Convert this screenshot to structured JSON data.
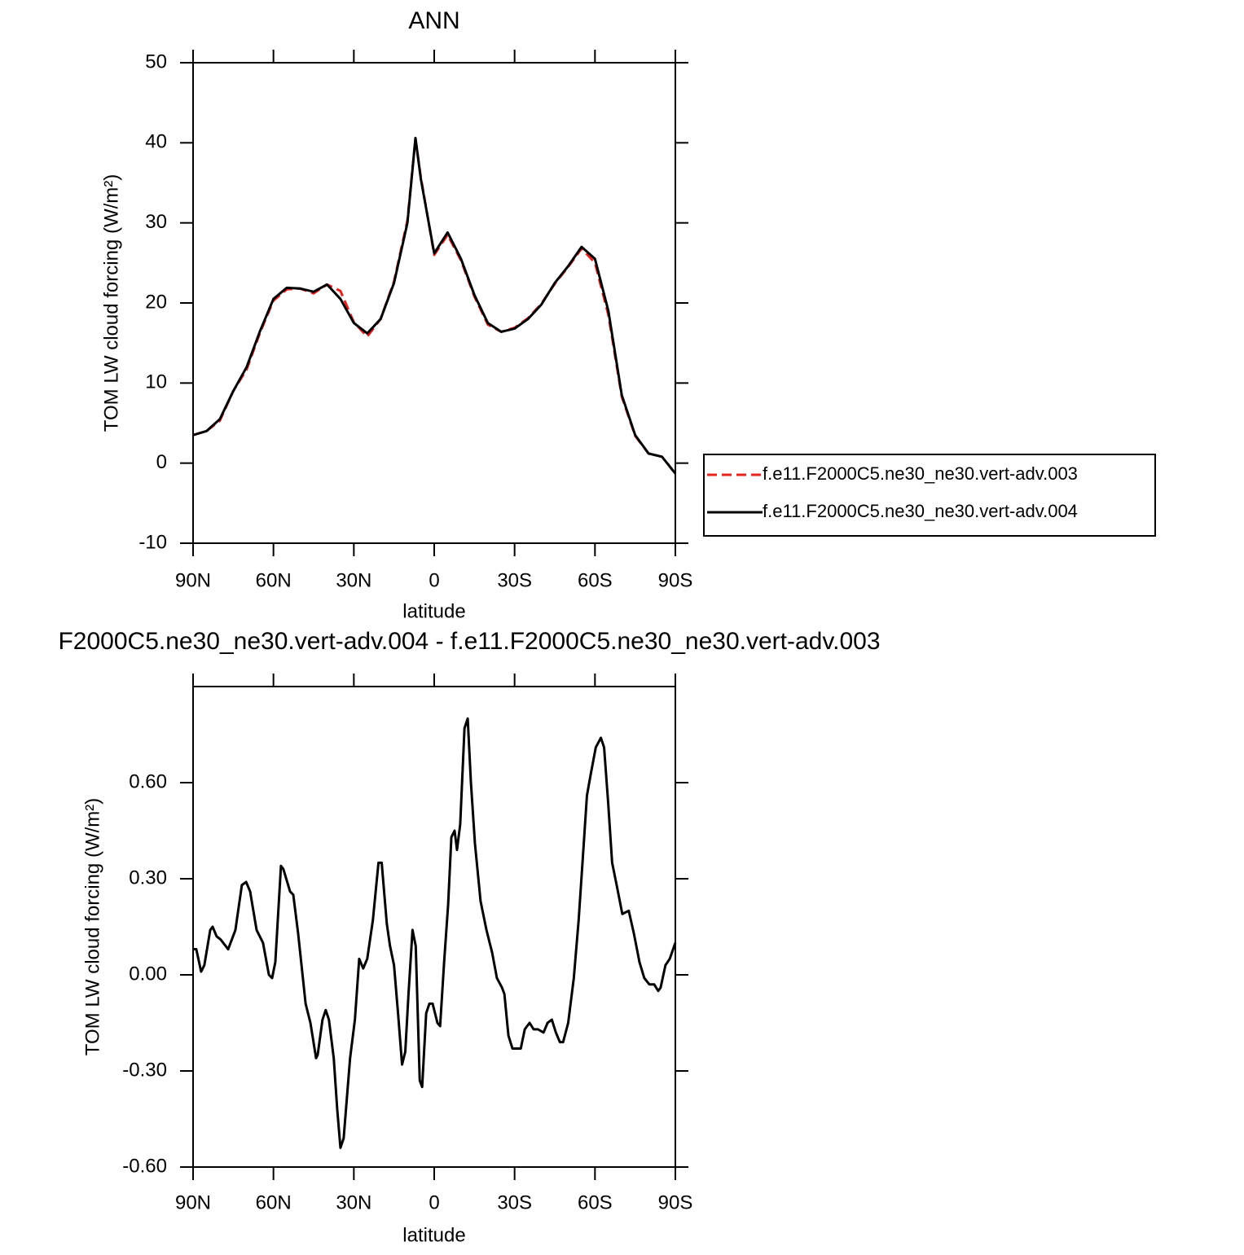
{
  "chart_data": [
    {
      "type": "line",
      "title": "ANN",
      "xlabel": "latitude",
      "ylabel": "TOM LW cloud forcing (W/m²)",
      "x": [
        90,
        85,
        80,
        75,
        70,
        65,
        60,
        55,
        50,
        45,
        40,
        35,
        30,
        25,
        20,
        15,
        10,
        7,
        5,
        0,
        -5,
        -10,
        -15,
        -20,
        -25,
        -30,
        -35,
        -40,
        -45,
        -50,
        -55,
        -60,
        -65,
        -70,
        -75,
        -80,
        -85,
        -90
      ],
      "series": [
        {
          "name": "f.e11.F2000C5.ne30_ne30.vert-adv.003",
          "color": "#e8231f",
          "style": "dashed",
          "values": [
            3.5,
            4.0,
            5.3,
            9.0,
            11.7,
            16.3,
            20.3,
            21.7,
            21.8,
            21.2,
            22.3,
            21.5,
            17.6,
            15.8,
            18.0,
            22.7,
            30.3,
            40.5,
            35.7,
            26.0,
            28.5,
            25.3,
            20.8,
            17.3,
            16.4,
            16.9,
            18.1,
            19.9,
            22.4,
            24.5,
            26.8,
            25.0,
            18.5,
            8.3,
            3.4,
            1.2,
            0.8,
            -1.3
          ]
        },
        {
          "name": "f.e11.F2000C5.ne30_ne30.vert-adv.004",
          "color": "#000000",
          "style": "solid",
          "values": [
            3.5,
            4.0,
            5.5,
            9.0,
            12.0,
            16.5,
            20.5,
            21.9,
            21.8,
            21.4,
            22.3,
            20.5,
            17.5,
            16.2,
            18.0,
            22.5,
            30.0,
            40.6,
            35.5,
            26.2,
            28.8,
            25.5,
            21.0,
            17.5,
            16.4,
            16.8,
            18.0,
            19.8,
            22.5,
            24.6,
            27.0,
            25.5,
            19.0,
            8.5,
            3.5,
            1.2,
            0.8,
            -1.3
          ]
        }
      ],
      "xlim": [
        90,
        -90
      ],
      "ylim": [
        -10,
        50
      ],
      "xticks": [
        {
          "value": 90,
          "label": "90N"
        },
        {
          "value": 60,
          "label": "60N"
        },
        {
          "value": 30,
          "label": "30N"
        },
        0,
        {
          "value": -30,
          "label": "30S"
        },
        {
          "value": -60,
          "label": "60S"
        },
        {
          "value": -90,
          "label": "90S"
        }
      ],
      "yticks": [
        -10,
        0,
        10,
        20,
        30,
        40,
        50
      ],
      "legend": "right"
    },
    {
      "type": "line",
      "title": "F2000C5.ne30_ne30.vert-adv.004 - f.e11.F2000C5.ne30_ne30.vert-adv.003",
      "xlabel": "latitude",
      "ylabel": "TOM LW cloud forcing (W/m²)",
      "x": [
        90,
        88.8,
        87.0,
        85.8,
        83.6,
        82.7,
        81.2,
        79.7,
        76.9,
        74.2,
        71.8,
        70.2,
        68.7,
        66.3,
        63.9,
        61.7,
        60.5,
        59.3,
        57.2,
        56.3,
        53.8,
        52.6,
        50.8,
        48.0,
        46.2,
        44.1,
        43.5,
        41.7,
        40.5,
        39.3,
        37.5,
        36.2,
        35.0,
        33.8,
        31.4,
        29.6,
        28.0,
        26.5,
        25.0,
        22.9,
        20.8,
        19.6,
        17.7,
        16.5,
        15.0,
        13.5,
        12.0,
        10.8,
        9.6,
        8.1,
        6.9,
        5.4,
        4.5,
        3.0,
        1.8,
        0.6,
        -1.2,
        -2.2,
        -3.7,
        -5.2,
        -6.4,
        -7.6,
        -8.5,
        -9.7,
        -11.3,
        -12.5,
        -13.7,
        -15.2,
        -17.3,
        -19.5,
        -21.6,
        -23.4,
        -25.3,
        -26.2,
        -27.7,
        -29.2,
        -30.7,
        -32.3,
        -33.8,
        -35.6,
        -37.1,
        -38.7,
        -40.8,
        -42.3,
        -43.9,
        -45.4,
        -46.9,
        -48.1,
        -50.0,
        -52.1,
        -53.9,
        -55.5,
        -57.0,
        -58.5,
        -60.3,
        -62.2,
        -63.4,
        -64.9,
        -66.4,
        -68.1,
        -70.2,
        -72.6,
        -74.5,
        -76.6,
        -78.4,
        -80.3,
        -82.1,
        -83.6,
        -84.5,
        -86.3,
        -87.9,
        -90
      ],
      "values": [
        0.08,
        0.08,
        0.01,
        0.03,
        0.14,
        0.15,
        0.12,
        0.11,
        0.08,
        0.14,
        0.28,
        0.29,
        0.26,
        0.14,
        0.1,
        0.0,
        -0.01,
        0.04,
        0.34,
        0.33,
        0.26,
        0.25,
        0.13,
        -0.09,
        -0.15,
        -0.26,
        -0.25,
        -0.14,
        -0.11,
        -0.14,
        -0.26,
        -0.42,
        -0.54,
        -0.51,
        -0.26,
        -0.14,
        0.05,
        0.02,
        0.05,
        0.17,
        0.35,
        0.35,
        0.16,
        0.09,
        0.03,
        -0.12,
        -0.28,
        -0.24,
        -0.06,
        0.14,
        0.09,
        -0.33,
        -0.35,
        -0.12,
        -0.09,
        -0.09,
        -0.15,
        -0.16,
        0.04,
        0.22,
        0.43,
        0.45,
        0.39,
        0.47,
        0.77,
        0.8,
        0.6,
        0.41,
        0.23,
        0.14,
        0.07,
        -0.01,
        -0.04,
        -0.06,
        -0.19,
        -0.23,
        -0.23,
        -0.23,
        -0.17,
        -0.15,
        -0.17,
        -0.17,
        -0.18,
        -0.15,
        -0.14,
        -0.18,
        -0.21,
        -0.21,
        -0.15,
        -0.01,
        0.17,
        0.37,
        0.56,
        0.63,
        0.71,
        0.74,
        0.71,
        0.54,
        0.35,
        0.28,
        0.19,
        0.2,
        0.13,
        0.04,
        -0.01,
        -0.03,
        -0.03,
        -0.05,
        -0.04,
        0.03,
        0.05,
        0.1
      ],
      "color": "#000000",
      "xlim": [
        90,
        -90
      ],
      "ylim": [
        -0.6,
        0.9
      ],
      "xticks": [
        {
          "value": 90,
          "label": "90N"
        },
        {
          "value": 60,
          "label": "60N"
        },
        {
          "value": 30,
          "label": "30N"
        },
        0,
        {
          "value": -30,
          "label": "30S"
        },
        {
          "value": -60,
          "label": "60S"
        },
        {
          "value": -90,
          "label": "90S"
        }
      ],
      "yticks": [
        {
          "value": -0.6,
          "label": "-0.60"
        },
        {
          "value": -0.3,
          "label": "-0.30"
        },
        {
          "value": 0,
          "label": "0.00"
        },
        {
          "value": 0.3,
          "label": "0.30"
        },
        {
          "value": 0.6,
          "label": "0.60"
        }
      ]
    }
  ]
}
